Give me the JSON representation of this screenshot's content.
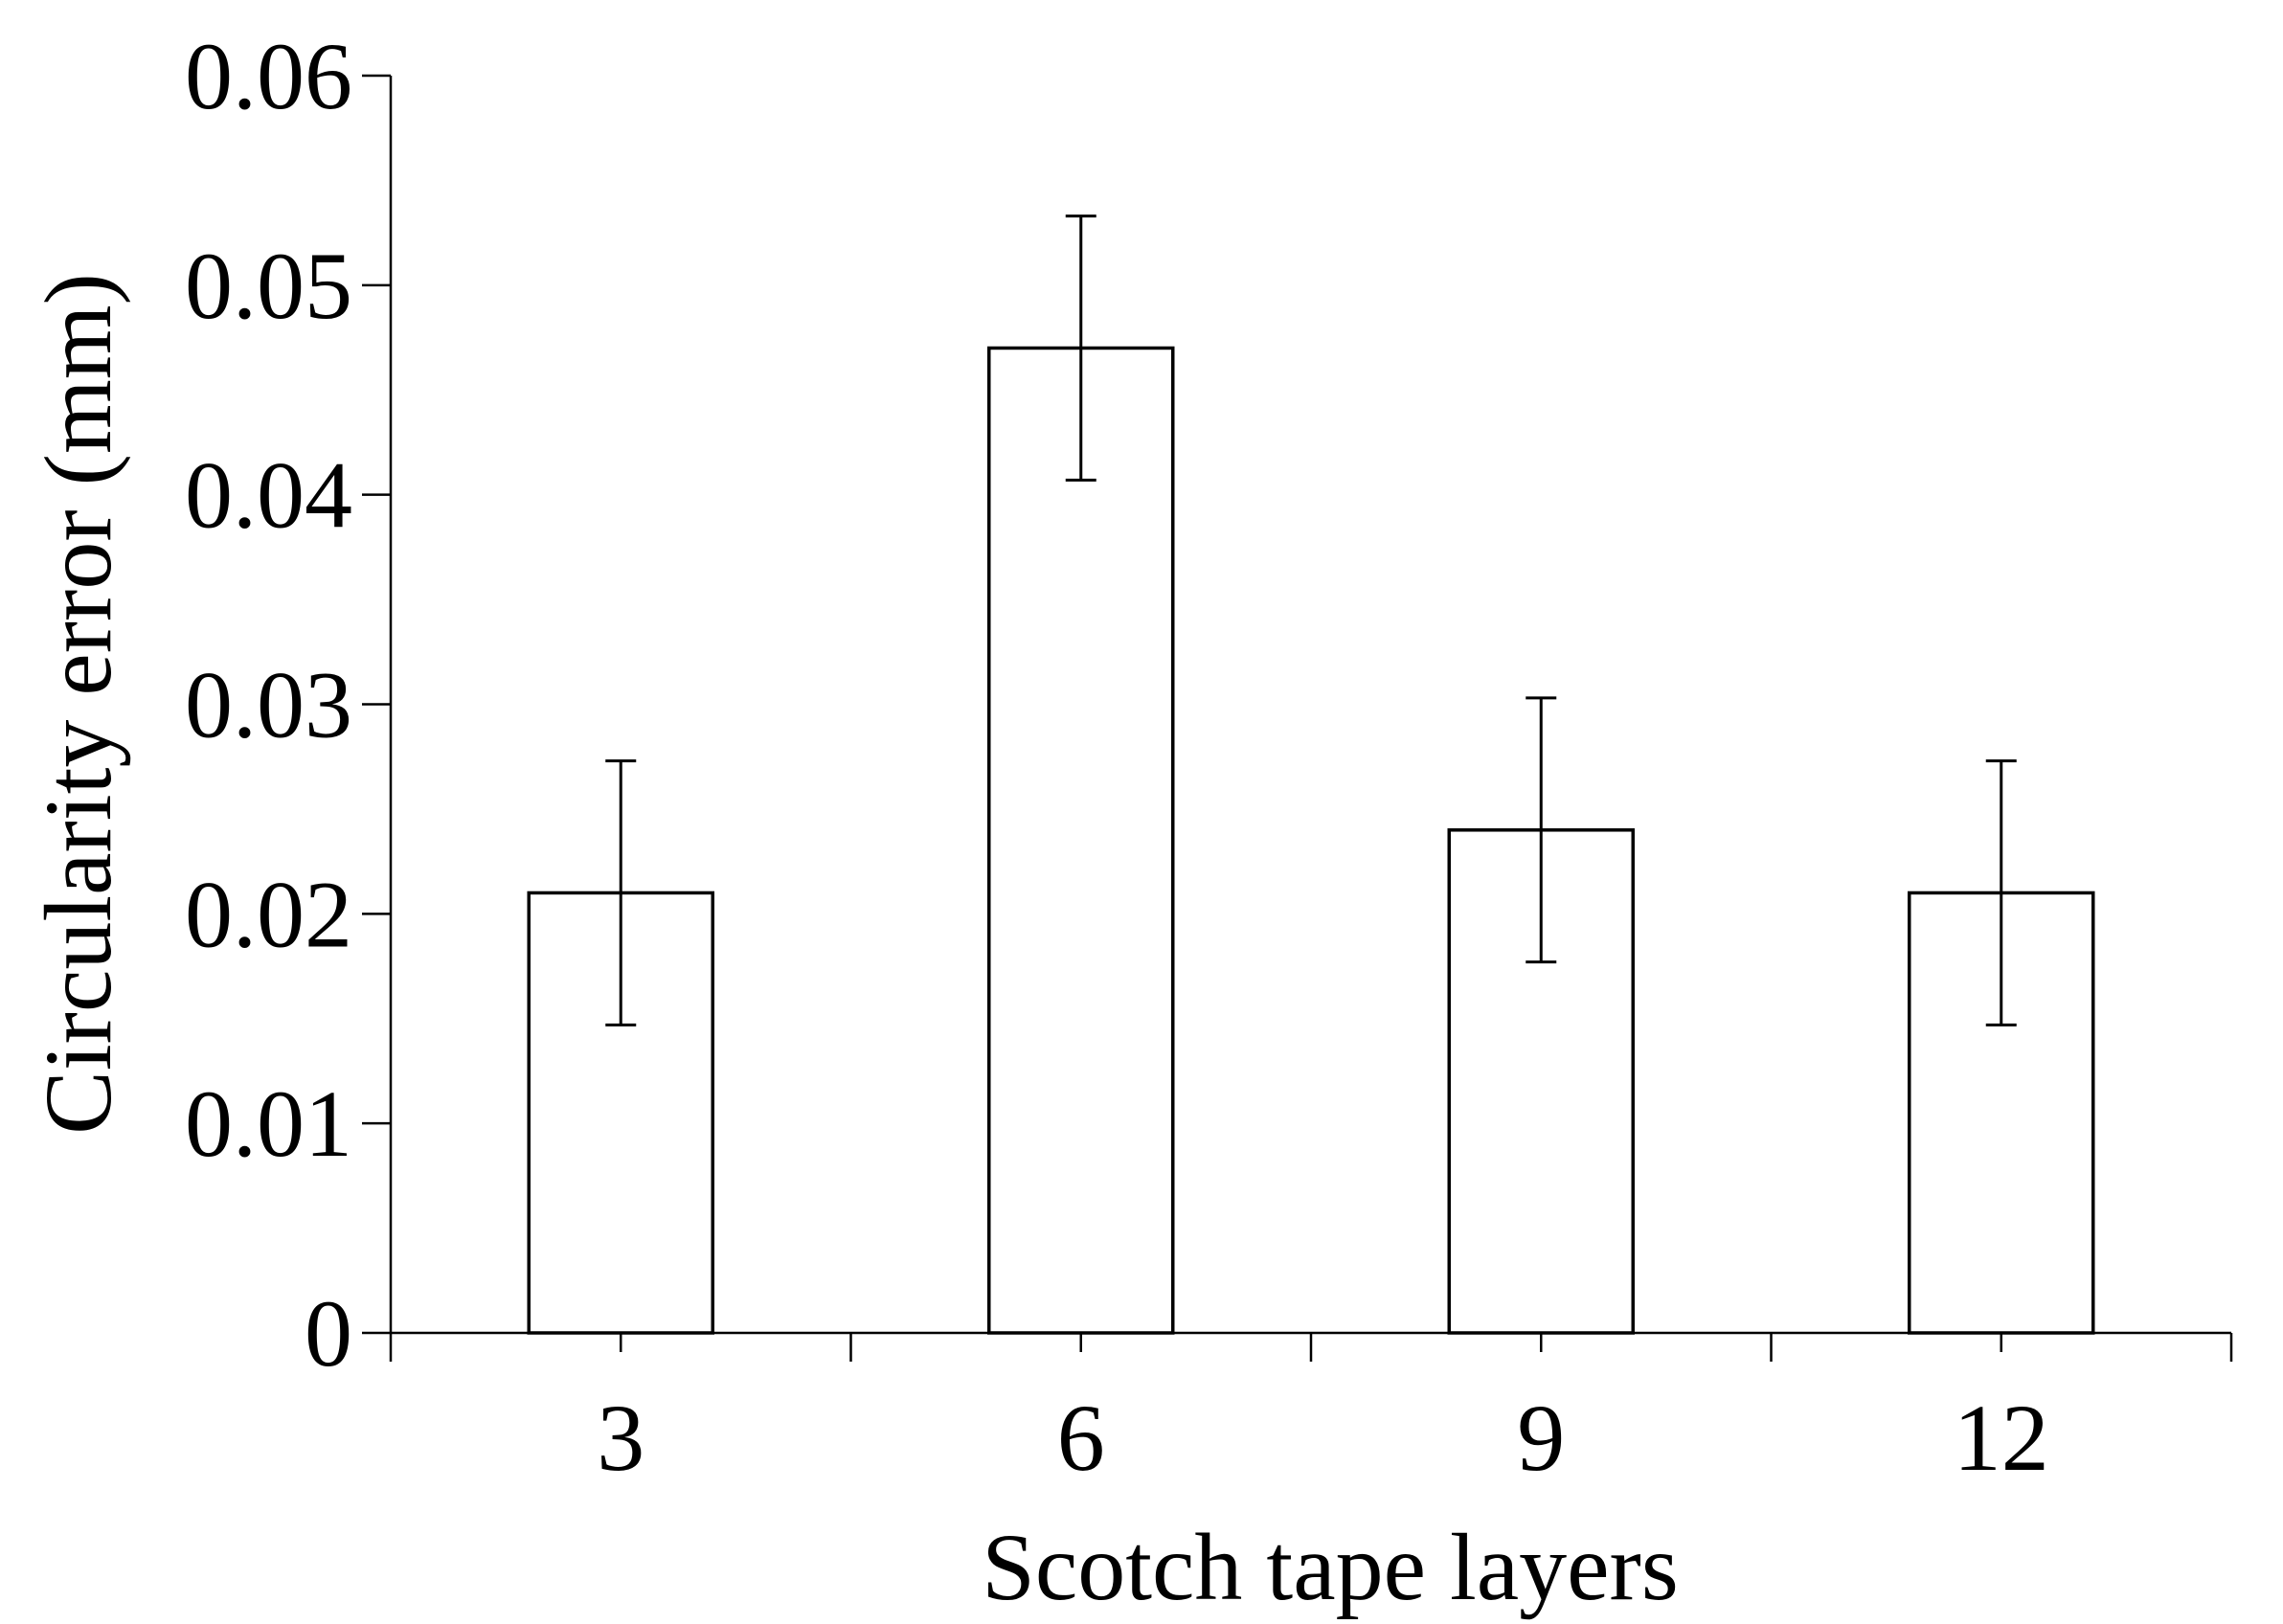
{
  "chart_data": {
    "type": "bar",
    "categories": [
      "3",
      "6",
      "9",
      "12"
    ],
    "values": [
      0.021,
      0.047,
      0.024,
      0.021
    ],
    "error_bars": [
      0.0063,
      0.0063,
      0.0063,
      0.0063
    ],
    "xlabel": "Scotch tape layers",
    "ylabel": "Circularity error (mm)",
    "ylim": [
      0,
      0.06
    ],
    "yticks": [
      "0",
      "0.01",
      "0.02",
      "0.03",
      "0.04",
      "0.05",
      "0.06"
    ],
    "grid": false,
    "legend": "none",
    "bar_fill": "#ffffff",
    "bar_stroke": "#000000"
  }
}
